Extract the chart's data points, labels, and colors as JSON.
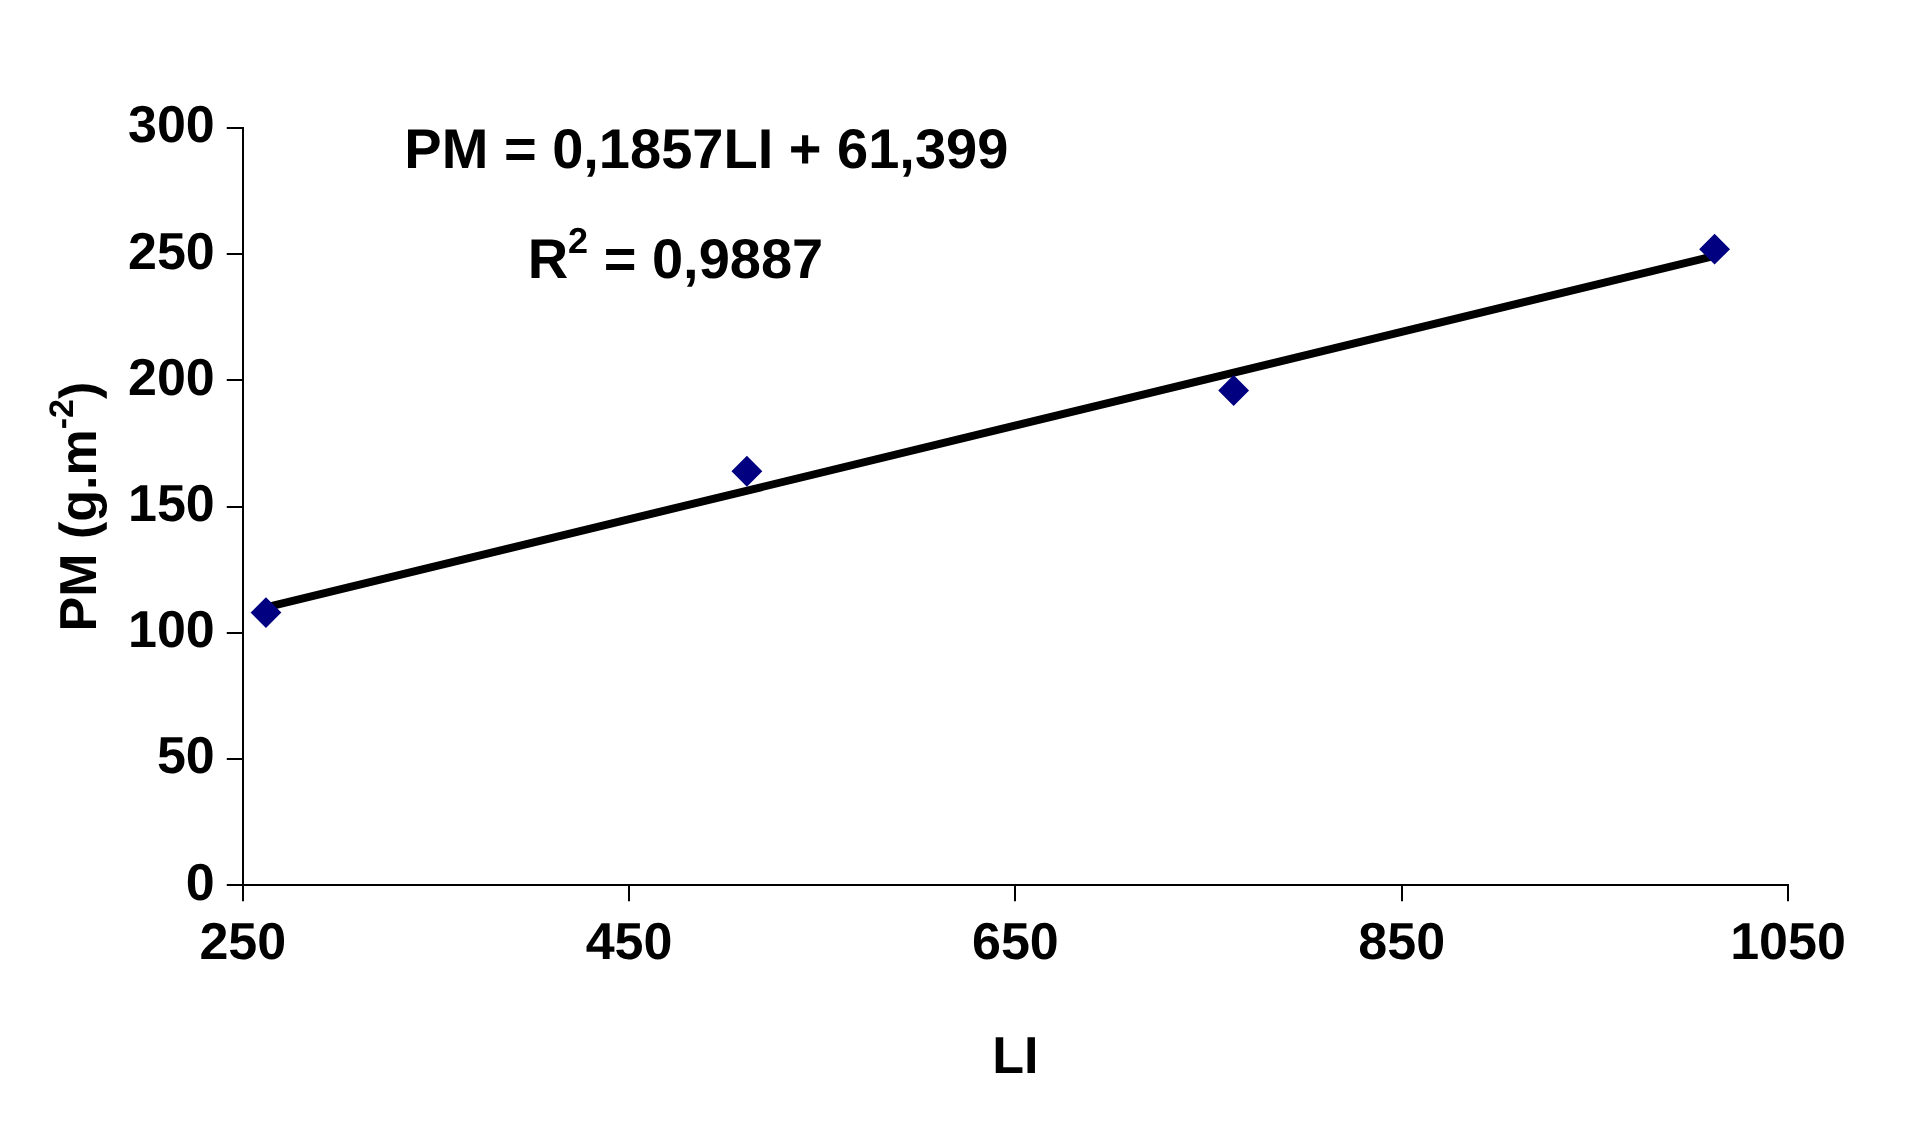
{
  "chart_data": {
    "type": "scatter",
    "xlabel": "LI",
    "ylabel": "PM (g.m$^{-2}$)",
    "xlim": [
      250,
      1050
    ],
    "xticks": [
      250,
      450,
      650,
      850,
      1050
    ],
    "ylim": [
      0,
      300
    ],
    "yticks": [
      0,
      50,
      100,
      150,
      200,
      250,
      300
    ],
    "marker": "diamond",
    "series": [
      {
        "color": "#000080",
        "x": [
          262,
          511,
          763,
          1012
        ],
        "values": [
          108,
          164,
          196,
          252
        ]
      },
      {
        "type": "line",
        "color": "#000000",
        "marker": "none",
        "x": [
          262,
          1012
        ],
        "values": [
          110.1,
          249.3
        ]
      }
    ],
    "annotations": [
      "PM = 0,1857LI + 61,399",
      "R$^{2}$ = 0,9887"
    ]
  }
}
